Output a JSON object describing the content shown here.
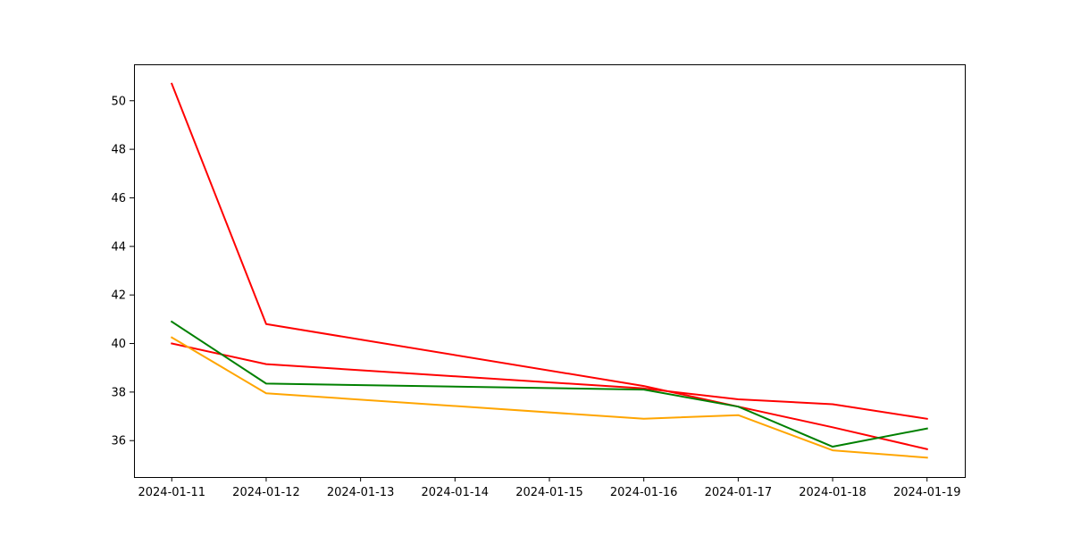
{
  "chart_data": {
    "type": "line",
    "title": "",
    "xlabel": "",
    "ylabel": "",
    "grid": false,
    "x_ticks": [
      "2024-01-11",
      "2024-01-12",
      "2024-01-13",
      "2024-01-14",
      "2024-01-15",
      "2024-01-16",
      "2024-01-17",
      "2024-01-18",
      "2024-01-19"
    ],
    "y_ticks": [
      36,
      38,
      40,
      42,
      44,
      46,
      48,
      50
    ],
    "xlim": [
      "2024-01-10T14:24",
      "2024-01-19T09:36"
    ],
    "ylim": [
      34.5,
      51.5
    ],
    "series": [
      {
        "color": "#ff0000",
        "x": [
          "2024-01-11",
          "2024-01-12",
          "2024-01-16",
          "2024-01-17",
          "2024-01-18",
          "2024-01-19"
        ],
        "y": [
          50.7,
          40.8,
          38.25,
          37.4,
          36.55,
          35.65
        ]
      },
      {
        "color": "#ff0000",
        "x": [
          "2024-01-11",
          "2024-01-12",
          "2024-01-16",
          "2024-01-17",
          "2024-01-18",
          "2024-01-19"
        ],
        "y": [
          40.0,
          39.15,
          38.15,
          37.7,
          37.5,
          36.9
        ]
      },
      {
        "color": "#008000",
        "x": [
          "2024-01-11",
          "2024-01-12",
          "2024-01-16",
          "2024-01-17",
          "2024-01-18",
          "2024-01-19"
        ],
        "y": [
          40.9,
          38.35,
          38.1,
          37.4,
          35.75,
          36.5
        ]
      },
      {
        "color": "#ffa500",
        "x": [
          "2024-01-11",
          "2024-01-12",
          "2024-01-16",
          "2024-01-17",
          "2024-01-18",
          "2024-01-19"
        ],
        "y": [
          40.25,
          37.95,
          36.9,
          37.05,
          35.6,
          35.3
        ]
      }
    ]
  }
}
